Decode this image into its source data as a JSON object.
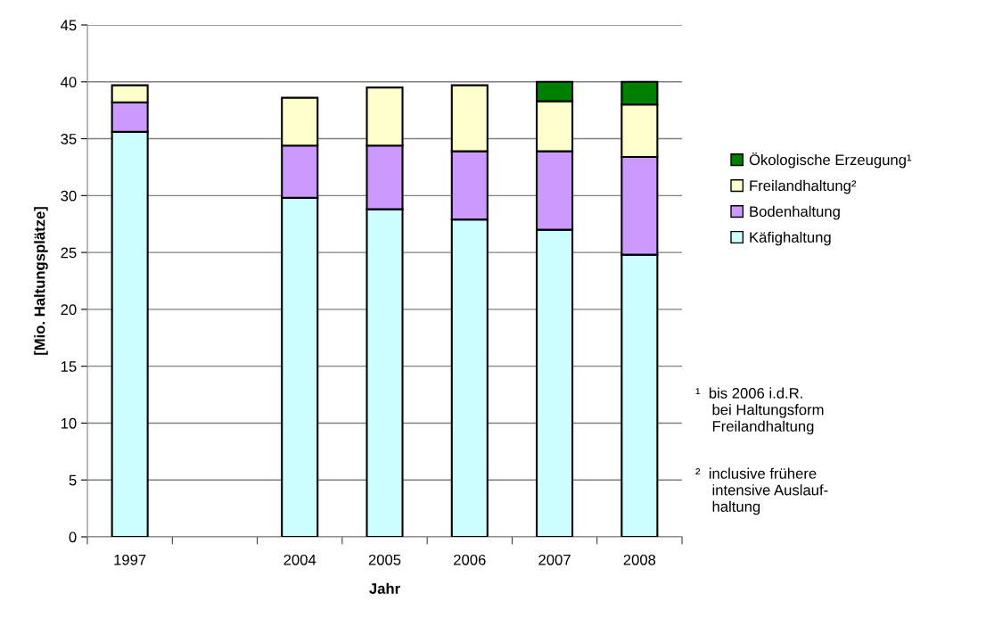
{
  "chart_data": {
    "type": "bar",
    "stacked": true,
    "xlabel": "Jahr",
    "ylabel": "[Mio. Haltungsplätze]",
    "categories": [
      "1997",
      null,
      "2004",
      "2005",
      "2006",
      "2007",
      "2008"
    ],
    "series": [
      {
        "name": "Käfighaltung",
        "color": "#ccffff",
        "values": [
          35.6,
          null,
          29.8,
          28.8,
          27.9,
          27.0,
          24.8
        ]
      },
      {
        "name": "Bodenhaltung",
        "color": "#cc99ff",
        "values": [
          2.6,
          null,
          4.6,
          5.6,
          6.0,
          6.9,
          8.6
        ]
      },
      {
        "name": "Freilandhaltung²",
        "color": "#ffffcc",
        "values": [
          1.5,
          null,
          4.2,
          5.1,
          5.8,
          4.4,
          4.6
        ]
      },
      {
        "name": "Ökologische Erzeugung¹",
        "color": "#008000",
        "values": [
          null,
          null,
          null,
          null,
          null,
          1.7,
          2.0
        ]
      }
    ],
    "ylim": [
      0,
      45
    ],
    "yticks": [
      0,
      5,
      10,
      15,
      20,
      25,
      30,
      35,
      40,
      45
    ],
    "grid": "y",
    "legend": "right",
    "annotations": [
      "¹  bis 2006 i.d.R.\n    bei Haltungsform\n    Freilandhaltung",
      "²  inclusive frühere\n    intensive Auslauf-\n    haltung"
    ]
  }
}
